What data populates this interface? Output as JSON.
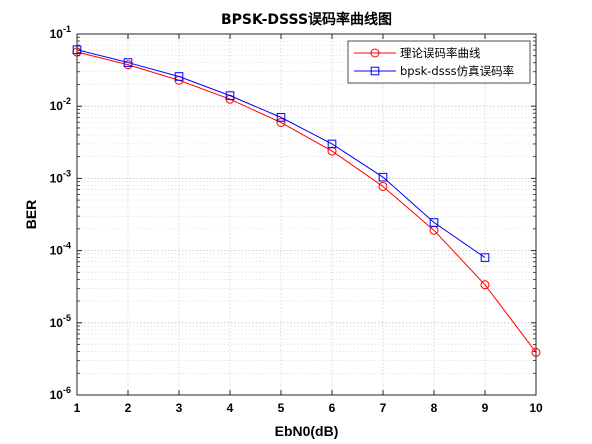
{
  "chart_data": {
    "type": "line",
    "title": "BPSK-DSSS误码率曲线图",
    "xlabel": "EbN0(dB)",
    "ylabel": "BER",
    "xlim": [
      1,
      10
    ],
    "ylim_exp": [
      -6,
      -1
    ],
    "yscale": "log",
    "y_tick_base": "10",
    "x_ticks": [
      "1",
      "2",
      "3",
      "4",
      "5",
      "6",
      "7",
      "8",
      "9",
      "10"
    ],
    "y_tick_exponents": [
      "-1",
      "-2",
      "-3",
      "-4",
      "-5",
      "-6"
    ],
    "grid": true,
    "legend_position": "top-right",
    "series": [
      {
        "name": "理论误码率曲线",
        "color": "#ff0000",
        "marker": "circle",
        "x": [
          1,
          2,
          3,
          4,
          5,
          6,
          7,
          8,
          9,
          10
        ],
        "y": [
          0.0563,
          0.0375,
          0.0229,
          0.0125,
          0.00595,
          0.00239,
          0.000773,
          0.000191,
          3.36e-05,
          3.9e-06
        ]
      },
      {
        "name": "bpsk-dsss仿真误码率",
        "color": "#0000ff",
        "marker": "square",
        "x": [
          1,
          2,
          3,
          4,
          5,
          6,
          7,
          8,
          9
        ],
        "y": [
          0.0605,
          0.0402,
          0.0258,
          0.014,
          0.007,
          0.003,
          0.00104,
          0.000245,
          8e-05
        ]
      }
    ]
  }
}
